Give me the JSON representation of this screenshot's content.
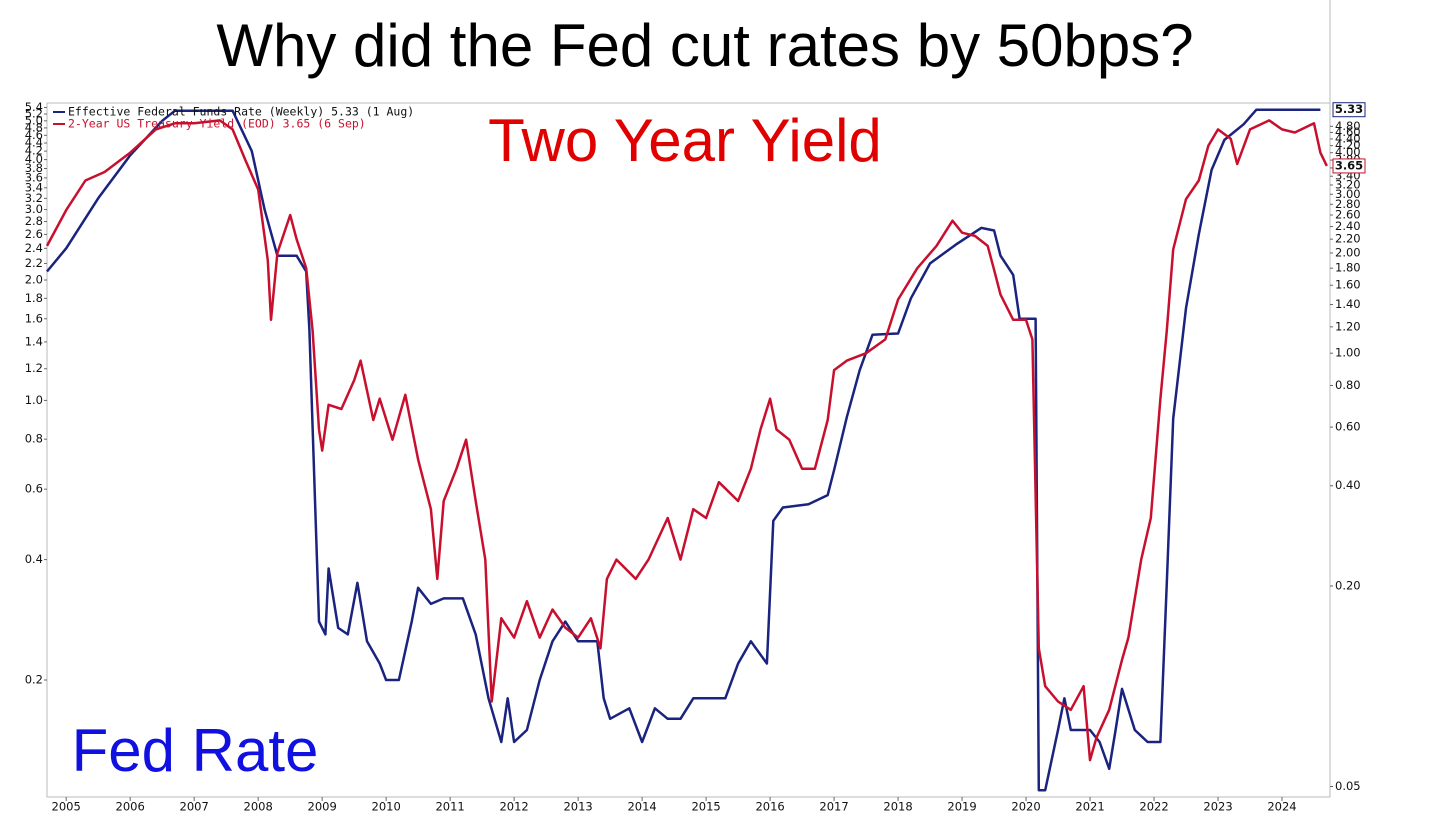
{
  "chart_data": {
    "type": "line",
    "title": "Why did the Fed cut rates by 50bps?",
    "annotations": [
      {
        "text": "Two Year Yield",
        "color": "#e00000"
      },
      {
        "text": "Fed Rate",
        "color": "#1010e0"
      }
    ],
    "log_scale": true,
    "grid": false,
    "legend": "top-left",
    "xlim": [
      2004.7,
      2024.75
    ],
    "xticks": [
      2005,
      2006,
      2007,
      2008,
      2009,
      2010,
      2011,
      2012,
      2013,
      2014,
      2015,
      2016,
      2017,
      2018,
      2019,
      2020,
      2021,
      2022,
      2023,
      2024
    ],
    "ylim": [
      0.102,
      5.54
    ],
    "yticks": [
      5.4,
      5.2,
      {
        "value": 5,
        "label": "5.0"
      },
      4.8,
      4.6,
      4.4,
      4.2,
      {
        "value": 4,
        "label": "4.0"
      },
      3.8,
      3.6,
      3.4,
      3.2,
      {
        "value": 3,
        "label": "3.0"
      },
      2.8,
      2.6,
      2.4,
      2.2,
      {
        "value": 2,
        "label": "2.0"
      },
      1.8,
      1.6,
      1.4,
      1.2,
      {
        "value": 1,
        "label": "1.0"
      },
      0.8,
      0.6,
      0.4,
      0.2
    ],
    "y2lim": [
      0.0465,
      5.64
    ],
    "y2ticks": [
      {
        "value": 4.8,
        "label": "4.80"
      },
      {
        "value": 4.6,
        "label": "4.60"
      },
      {
        "value": 4.4,
        "label": "4.40"
      },
      {
        "value": 4.2,
        "label": "4.20"
      },
      {
        "value": 4,
        "label": "4.00"
      },
      {
        "value": 3.8,
        "label": "3.80"
      },
      {
        "value": 3.6,
        "label": "3.60"
      },
      {
        "value": 3.4,
        "label": "3.40"
      },
      {
        "value": 3.2,
        "label": "3.20"
      },
      {
        "value": 3,
        "label": "3.00"
      },
      {
        "value": 2.8,
        "label": "2.80"
      },
      {
        "value": 2.6,
        "label": "2.60"
      },
      {
        "value": 2.4,
        "label": "2.40"
      },
      {
        "value": 2.2,
        "label": "2.20"
      },
      {
        "value": 2,
        "label": "2.00"
      },
      {
        "value": 1.8,
        "label": "1.80"
      },
      {
        "value": 1.6,
        "label": "1.60"
      },
      {
        "value": 1.4,
        "label": "1.40"
      },
      {
        "value": 1.2,
        "label": "1.20"
      },
      {
        "value": 1,
        "label": "1.00"
      },
      {
        "value": 0.8,
        "label": "0.80"
      },
      {
        "value": 0.6,
        "label": "0.60"
      },
      {
        "value": 0.4,
        "label": "0.40"
      },
      {
        "value": 0.2,
        "label": "0.20"
      },
      {
        "value": 0.05,
        "label": "0.05"
      }
    ],
    "series": [
      {
        "name": "Effective Federal Funds Rate (Weekly) 5.33 (1 Aug)",
        "color": "#1a237e",
        "axis": "y",
        "end_label": "5.33",
        "x": [
          2004.7,
          2005.0,
          2005.5,
          2006.0,
          2006.5,
          2006.7,
          2007.6,
          2007.9,
          2008.1,
          2008.3,
          2008.6,
          2008.75,
          2008.8,
          2008.95,
          2009.05,
          2009.1,
          2009.25,
          2009.4,
          2009.55,
          2009.7,
          2009.9,
          2010.0,
          2010.2,
          2010.4,
          2010.5,
          2010.7,
          2010.9,
          2011.2,
          2011.4,
          2011.6,
          2011.8,
          2011.9,
          2012.0,
          2012.2,
          2012.4,
          2012.6,
          2012.8,
          2013.0,
          2013.3,
          2013.4,
          2013.5,
          2013.8,
          2014.0,
          2014.2,
          2014.4,
          2014.6,
          2014.8,
          2015.0,
          2015.3,
          2015.5,
          2015.7,
          2015.95,
          2016.05,
          2016.2,
          2016.6,
          2016.9,
          2017.0,
          2017.2,
          2017.4,
          2017.6,
          2018.0,
          2018.2,
          2018.5,
          2018.9,
          2019.3,
          2019.5,
          2019.6,
          2019.8,
          2019.9,
          2020.15,
          2020.2,
          2020.3,
          2020.5,
          2020.6,
          2020.7,
          2021.0,
          2021.15,
          2021.3,
          2021.4,
          2021.5,
          2021.7,
          2021.9,
          2022.1,
          2022.2,
          2022.3,
          2022.5,
          2022.7,
          2022.9,
          2023.1,
          2023.4,
          2023.6,
          2024.6
        ],
        "values": [
          2.1,
          2.4,
          3.2,
          4.1,
          5.0,
          5.3,
          5.3,
          4.2,
          3.0,
          2.3,
          2.3,
          2.1,
          1.5,
          0.28,
          0.26,
          0.38,
          0.27,
          0.26,
          0.35,
          0.25,
          0.22,
          0.2,
          0.2,
          0.28,
          0.34,
          0.31,
          0.32,
          0.32,
          0.26,
          0.18,
          0.14,
          0.18,
          0.14,
          0.15,
          0.2,
          0.25,
          0.28,
          0.25,
          0.25,
          0.18,
          0.16,
          0.17,
          0.14,
          0.17,
          0.16,
          0.16,
          0.18,
          0.18,
          0.18,
          0.22,
          0.25,
          0.22,
          0.5,
          0.54,
          0.55,
          0.58,
          0.67,
          0.91,
          1.19,
          1.46,
          1.47,
          1.8,
          2.2,
          2.45,
          2.7,
          2.66,
          2.3,
          2.06,
          1.6,
          1.6,
          0.106,
          0.106,
          0.15,
          0.18,
          0.15,
          0.15,
          0.14,
          0.12,
          0.15,
          0.19,
          0.15,
          0.14,
          0.14,
          0.35,
          0.9,
          1.7,
          2.6,
          3.77,
          4.48,
          4.9,
          5.33,
          5.33
        ]
      },
      {
        "name": "2-Year US Treasury Yield (EOD) 3.65 (6 Sep)",
        "color": "#c8102e",
        "axis": "y2",
        "end_label": "3.65",
        "x": [
          2004.7,
          2005.0,
          2005.3,
          2005.6,
          2006.0,
          2006.4,
          2006.7,
          2007.0,
          2007.4,
          2007.6,
          2007.8,
          2008.0,
          2008.15,
          2008.2,
          2008.3,
          2008.5,
          2008.6,
          2008.75,
          2008.85,
          2008.95,
          2009.0,
          2009.1,
          2009.3,
          2009.5,
          2009.6,
          2009.8,
          2009.9,
          2010.1,
          2010.3,
          2010.5,
          2010.7,
          2010.8,
          2010.9,
          2011.1,
          2011.25,
          2011.4,
          2011.55,
          2011.65,
          2011.8,
          2012.0,
          2012.2,
          2012.4,
          2012.6,
          2012.8,
          2013.0,
          2013.2,
          2013.35,
          2013.45,
          2013.6,
          2013.9,
          2014.1,
          2014.4,
          2014.6,
          2014.8,
          2015.0,
          2015.2,
          2015.5,
          2015.7,
          2015.85,
          2016.0,
          2016.1,
          2016.3,
          2016.5,
          2016.7,
          2016.9,
          2017.0,
          2017.2,
          2017.5,
          2017.8,
          2018.0,
          2018.3,
          2018.6,
          2018.85,
          2019.0,
          2019.2,
          2019.4,
          2019.5,
          2019.6,
          2019.8,
          2020.0,
          2020.1,
          2020.2,
          2020.3,
          2020.5,
          2020.7,
          2020.9,
          2021.0,
          2021.1,
          2021.3,
          2021.5,
          2021.6,
          2021.8,
          2021.95,
          2022.1,
          2022.2,
          2022.3,
          2022.5,
          2022.7,
          2022.85,
          2023.0,
          2023.2,
          2023.3,
          2023.5,
          2023.8,
          2024.0,
          2024.2,
          2024.5,
          2024.6,
          2024.7
        ],
        "values": [
          2.1,
          2.69,
          3.3,
          3.5,
          4.0,
          4.7,
          4.9,
          4.9,
          5.0,
          4.7,
          3.8,
          3.1,
          1.9,
          1.26,
          2.0,
          2.6,
          2.2,
          1.8,
          1.17,
          0.59,
          0.51,
          0.7,
          0.68,
          0.83,
          0.95,
          0.63,
          0.73,
          0.55,
          0.75,
          0.48,
          0.34,
          0.21,
          0.36,
          0.45,
          0.55,
          0.36,
          0.24,
          0.09,
          0.16,
          0.14,
          0.18,
          0.14,
          0.17,
          0.15,
          0.14,
          0.16,
          0.13,
          0.21,
          0.24,
          0.21,
          0.24,
          0.32,
          0.24,
          0.34,
          0.32,
          0.41,
          0.36,
          0.45,
          0.59,
          0.73,
          0.59,
          0.55,
          0.45,
          0.45,
          0.63,
          0.89,
          0.95,
          1.0,
          1.1,
          1.45,
          1.8,
          2.1,
          2.5,
          2.3,
          2.25,
          2.1,
          1.78,
          1.5,
          1.26,
          1.26,
          1.1,
          0.13,
          0.1,
          0.09,
          0.085,
          0.1,
          0.06,
          0.07,
          0.085,
          0.12,
          0.14,
          0.24,
          0.32,
          0.73,
          1.17,
          2.05,
          2.9,
          3.3,
          4.2,
          4.7,
          4.4,
          3.7,
          4.7,
          5.0,
          4.7,
          4.6,
          4.9,
          4.0,
          3.65
        ]
      }
    ]
  }
}
